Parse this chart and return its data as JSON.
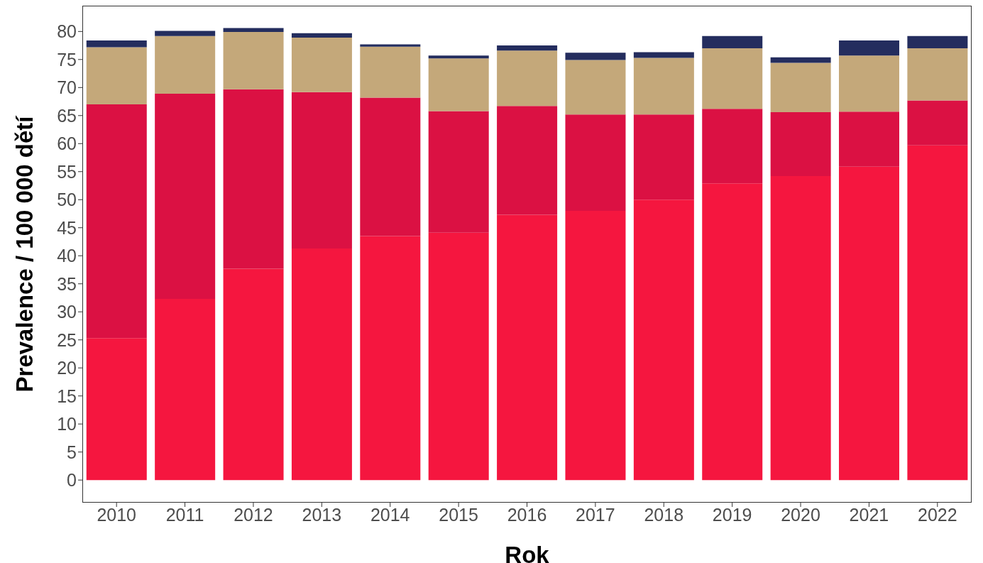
{
  "chart_data": {
    "type": "bar",
    "stacked": true,
    "xlabel": "Rok",
    "ylabel": "Prevalence / 100 000 dětí",
    "categories": [
      "2010",
      "2011",
      "2012",
      "2013",
      "2014",
      "2015",
      "2016",
      "2017",
      "2018",
      "2019",
      "2020",
      "2021",
      "2022"
    ],
    "series": [
      {
        "color": "#f5163f",
        "values": [
          25.3,
          32.3,
          37.7,
          41.3,
          43.5,
          44.1,
          47.3,
          48.0,
          50.0,
          52.9,
          54.2,
          55.9,
          59.7
        ]
      },
      {
        "color": "#db1143",
        "values": [
          41.7,
          36.6,
          32.0,
          27.9,
          24.7,
          21.7,
          19.4,
          17.2,
          15.2,
          13.3,
          11.4,
          9.8,
          8.0
        ]
      },
      {
        "color": "#c4a87a",
        "values": [
          10.2,
          10.3,
          10.2,
          9.7,
          9.1,
          9.4,
          9.9,
          9.7,
          10.1,
          10.8,
          8.8,
          10.0,
          9.3
        ]
      },
      {
        "color": "#242d5e",
        "values": [
          1.2,
          0.9,
          0.7,
          0.8,
          0.4,
          0.5,
          0.9,
          1.3,
          1.0,
          2.2,
          1.0,
          2.7,
          2.2
        ]
      }
    ],
    "ylim": [
      -4.03,
      84.6
    ],
    "yticks": [
      0,
      5,
      10,
      15,
      20,
      25,
      30,
      35,
      40,
      45,
      50,
      55,
      60,
      65,
      70,
      75,
      80
    ],
    "grid": false,
    "legend": false
  }
}
